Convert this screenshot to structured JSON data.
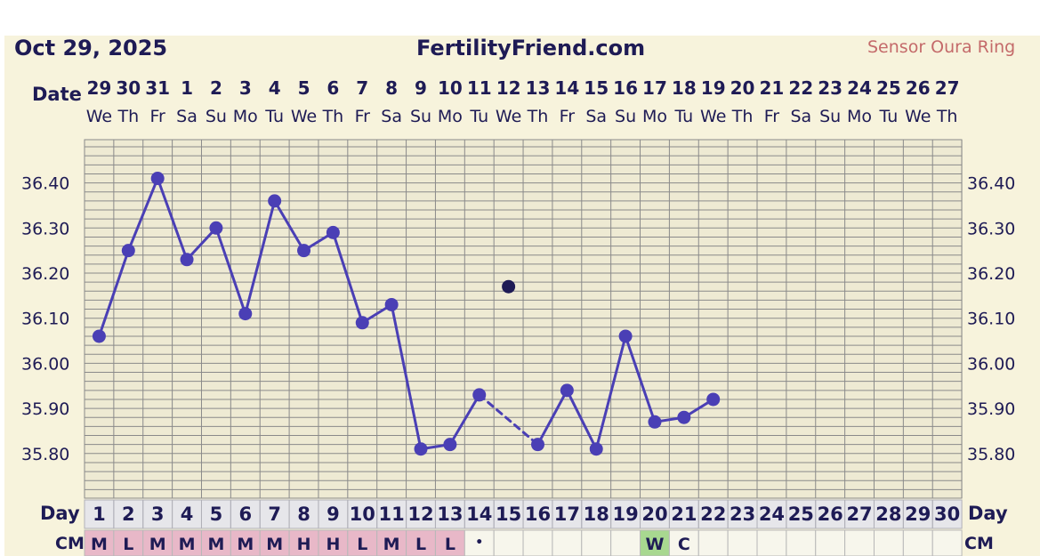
{
  "header": {
    "date": "Oct 29, 2025",
    "site": "FertilityFriend.com",
    "sensor": "Sensor Oura Ring"
  },
  "chart_data": {
    "type": "line",
    "row_labels": {
      "date": "Date",
      "day": "Day",
      "cm": "CM"
    },
    "dates": [
      "29",
      "30",
      "31",
      "1",
      "2",
      "3",
      "4",
      "5",
      "6",
      "7",
      "8",
      "9",
      "10",
      "11",
      "12",
      "13",
      "14",
      "15",
      "16",
      "17",
      "18",
      "19",
      "20",
      "21",
      "22",
      "23",
      "24",
      "25",
      "26",
      "27"
    ],
    "weekdays": [
      "We",
      "Th",
      "Fr",
      "Sa",
      "Su",
      "Mo",
      "Tu",
      "We",
      "Th",
      "Fr",
      "Sa",
      "Su",
      "Mo",
      "Tu",
      "We",
      "Th",
      "Fr",
      "Sa",
      "Su",
      "Mo",
      "Tu",
      "We",
      "Th",
      "Fr",
      "Sa",
      "Su",
      "Mo",
      "Tu",
      "We",
      "Th"
    ],
    "days": [
      1,
      2,
      3,
      4,
      5,
      6,
      7,
      8,
      9,
      10,
      11,
      12,
      13,
      14,
      15,
      16,
      17,
      18,
      19,
      20,
      21,
      22,
      23,
      24,
      25,
      26,
      27,
      28,
      29,
      30
    ],
    "y_ticks": [
      "36.40",
      "36.30",
      "36.20",
      "36.10",
      "36.00",
      "35.90",
      "35.80"
    ],
    "ylim": [
      35.72,
      36.5
    ],
    "grid": true,
    "temperatures": [
      36.06,
      36.25,
      36.41,
      36.23,
      36.3,
      36.11,
      36.36,
      36.25,
      36.29,
      36.09,
      36.13,
      35.81,
      35.82,
      35.93,
      36.17,
      35.82,
      35.94,
      35.81,
      36.06,
      35.87,
      35.88,
      35.92,
      null,
      null,
      null,
      null,
      null,
      null,
      null,
      null
    ],
    "discarded_days": [
      15
    ],
    "dashed_segments": [
      [
        14,
        16
      ]
    ],
    "cervical_mucus": [
      "M",
      "L",
      "M",
      "M",
      "M",
      "M",
      "M",
      "H",
      "H",
      "L",
      "M",
      "L",
      "L",
      "•",
      "",
      "",
      "",
      "",
      "",
      "W",
      "C",
      "",
      "",
      "",
      "",
      "",
      "",
      "",
      "",
      ""
    ],
    "colors": {
      "line": "#4a3fb5",
      "discarded": "#1e1b55",
      "menses_cell": "#e8b8c8",
      "watery_cell": "#a8d890",
      "grid": "#8a8a8a",
      "plot_bg": "#eeead3",
      "text": "#1e1b55"
    }
  }
}
